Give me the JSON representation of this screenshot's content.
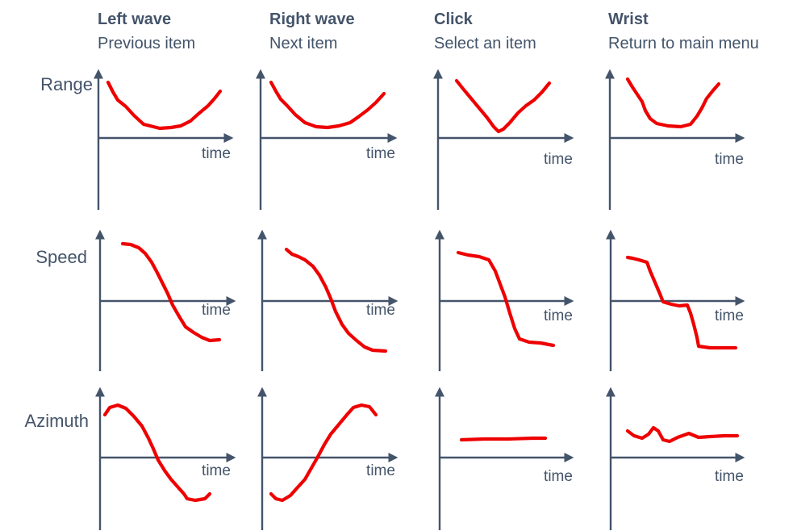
{
  "columns": [
    {
      "title": "Left wave",
      "subtitle": "Previous item"
    },
    {
      "title": "Right wave",
      "subtitle": "Next item"
    },
    {
      "title": "Click",
      "subtitle": "Select an item"
    },
    {
      "title": "Wrist",
      "subtitle": "Return to main menu"
    }
  ],
  "rows": [
    {
      "label": "Range"
    },
    {
      "label": "Speed"
    },
    {
      "label": "Azimuth"
    }
  ],
  "axis_label": "time",
  "colors": {
    "text": "#44546a",
    "axis": "#44546a",
    "curve": "#ee0000"
  }
}
